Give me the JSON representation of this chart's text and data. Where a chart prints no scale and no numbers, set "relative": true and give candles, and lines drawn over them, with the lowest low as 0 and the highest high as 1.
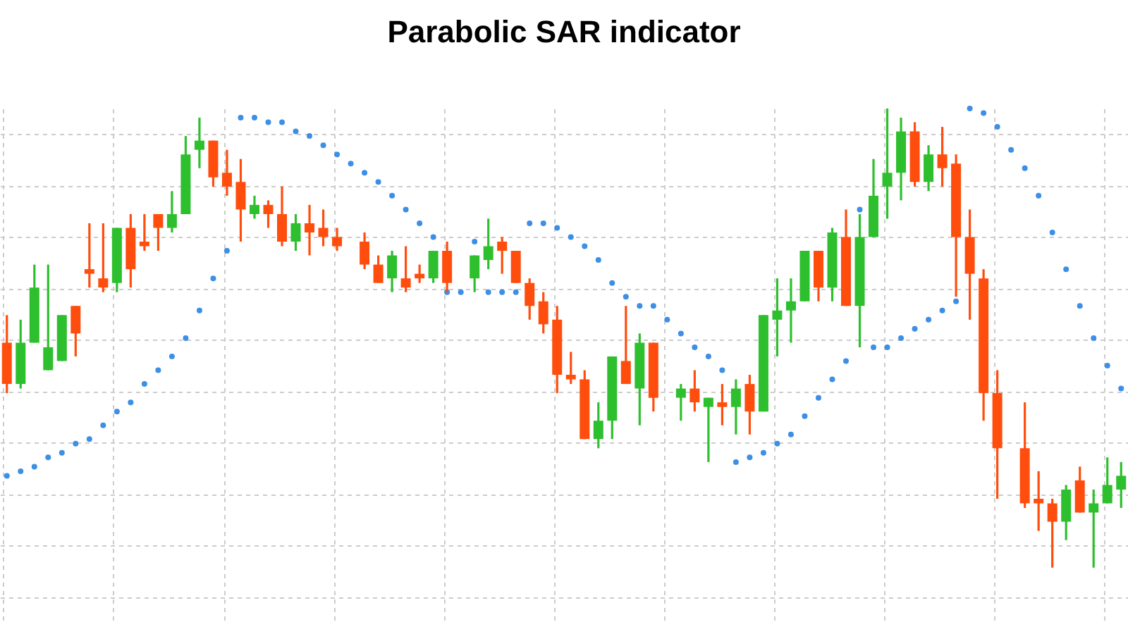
{
  "chart_data": {
    "type": "candlestick",
    "title": "Parabolic SAR indicator",
    "relative": true,
    "grid": true,
    "tick_labels": false,
    "marker": "circle",
    "categories": [
      null,
      null,
      null,
      null,
      null,
      null,
      null,
      null,
      null,
      null,
      null,
      null,
      null,
      null,
      null,
      null,
      null,
      null,
      null,
      null,
      null,
      null,
      null,
      null,
      null,
      null,
      null,
      null,
      null,
      null,
      null,
      null,
      null,
      null,
      null,
      null,
      null,
      null,
      null,
      null,
      null,
      null,
      null,
      null,
      null,
      null,
      null,
      null,
      null,
      null,
      null,
      null,
      null,
      null,
      null,
      null,
      null,
      null,
      null,
      null,
      null,
      null,
      null,
      null,
      null,
      null,
      null,
      null,
      null,
      null,
      null,
      null,
      null,
      null,
      null,
      null,
      null,
      null,
      null,
      null,
      null,
      null
    ],
    "ohlc": [
      [
        0.49,
        0.55,
        0.38,
        0.4
      ],
      [
        0.4,
        0.54,
        0.39,
        0.49
      ],
      [
        0.49,
        0.66,
        0.49,
        0.61
      ],
      [
        0.43,
        0.66,
        0.43,
        0.48
      ],
      [
        0.45,
        0.55,
        0.45,
        0.55
      ],
      [
        0.57,
        0.57,
        0.46,
        0.51
      ],
      [
        0.65,
        0.75,
        0.61,
        0.64
      ],
      [
        0.63,
        0.75,
        0.6,
        0.61
      ],
      [
        0.62,
        0.74,
        0.6,
        0.74
      ],
      [
        0.74,
        0.77,
        0.61,
        0.65
      ],
      [
        0.71,
        0.77,
        0.69,
        0.7
      ],
      [
        0.77,
        0.77,
        0.69,
        0.74
      ],
      [
        0.74,
        0.82,
        0.73,
        0.77
      ],
      [
        0.77,
        0.94,
        0.77,
        0.9
      ],
      [
        0.91,
        0.98,
        0.87,
        0.93
      ],
      [
        0.93,
        0.93,
        0.83,
        0.85
      ],
      [
        0.86,
        0.91,
        0.81,
        0.83
      ],
      [
        0.84,
        0.89,
        0.71,
        0.78
      ],
      [
        0.77,
        0.81,
        0.76,
        0.79
      ],
      [
        0.79,
        0.8,
        0.74,
        0.77
      ],
      [
        0.77,
        0.83,
        0.7,
        0.71
      ],
      [
        0.71,
        0.77,
        0.69,
        0.75
      ],
      [
        0.75,
        0.79,
        0.68,
        0.73
      ],
      [
        0.74,
        0.78,
        0.7,
        0.72
      ],
      [
        0.72,
        0.74,
        0.69,
        0.7
      ],
      null,
      [
        0.71,
        0.73,
        0.65,
        0.66
      ],
      [
        0.66,
        0.68,
        0.62,
        0.62
      ],
      [
        0.63,
        0.69,
        0.6,
        0.68
      ],
      [
        0.63,
        0.7,
        0.6,
        0.61
      ],
      [
        0.64,
        0.66,
        0.62,
        0.63
      ],
      [
        0.63,
        0.69,
        0.62,
        0.69
      ],
      [
        0.69,
        0.71,
        0.6,
        0.62
      ],
      null,
      [
        0.63,
        0.68,
        0.6,
        0.68
      ],
      [
        0.67,
        0.76,
        0.65,
        0.7
      ],
      [
        0.71,
        0.72,
        0.64,
        0.69
      ],
      [
        0.69,
        0.69,
        0.62,
        0.62
      ],
      [
        0.62,
        0.63,
        0.54,
        0.57
      ],
      [
        0.58,
        0.6,
        0.51,
        0.53
      ],
      [
        0.54,
        0.57,
        0.38,
        0.42
      ],
      [
        0.42,
        0.47,
        0.4,
        0.41
      ],
      [
        0.41,
        0.43,
        0.28,
        0.28
      ],
      [
        0.28,
        0.36,
        0.26,
        0.32
      ],
      [
        0.32,
        0.46,
        0.28,
        0.46
      ],
      [
        0.45,
        0.57,
        0.4,
        0.4
      ],
      [
        0.39,
        0.51,
        0.31,
        0.49
      ],
      [
        0.49,
        0.49,
        0.34,
        0.37
      ],
      null,
      [
        0.37,
        0.4,
        0.32,
        0.39
      ],
      [
        0.39,
        0.43,
        0.34,
        0.36
      ],
      [
        0.35,
        0.37,
        0.23,
        0.37
      ],
      [
        0.36,
        0.4,
        0.31,
        0.35
      ],
      [
        0.35,
        0.41,
        0.29,
        0.39
      ],
      [
        0.4,
        0.42,
        0.29,
        0.34
      ],
      [
        0.34,
        0.55,
        0.34,
        0.55
      ],
      [
        0.54,
        0.63,
        0.46,
        0.56
      ],
      [
        0.56,
        0.63,
        0.49,
        0.58
      ],
      [
        0.58,
        0.69,
        0.58,
        0.69
      ],
      [
        0.69,
        0.69,
        0.58,
        0.61
      ],
      [
        0.61,
        0.74,
        0.58,
        0.73
      ],
      [
        0.72,
        0.78,
        0.57,
        0.57
      ],
      [
        0.57,
        0.77,
        0.48,
        0.72
      ],
      [
        0.72,
        0.89,
        0.72,
        0.81
      ],
      [
        0.83,
        1,
        0.76,
        0.86
      ],
      [
        0.86,
        0.98,
        0.8,
        0.95
      ],
      [
        0.95,
        0.97,
        0.83,
        0.84
      ],
      [
        0.84,
        0.92,
        0.82,
        0.9
      ],
      [
        0.9,
        0.96,
        0.83,
        0.87
      ],
      [
        0.88,
        0.9,
        0.59,
        0.72
      ],
      [
        0.72,
        0.78,
        0.54,
        0.64
      ],
      [
        0.63,
        0.65,
        0.32,
        0.38
      ],
      [
        0.38,
        0.43,
        0.15,
        0.26
      ],
      null,
      [
        0.26,
        0.36,
        0.13,
        0.14
      ],
      [
        0.15,
        0.21,
        0.08,
        0.14
      ],
      [
        0.14,
        0.15,
        0,
        0.1
      ],
      [
        0.1,
        0.18,
        0.06,
        0.17
      ],
      [
        0.19,
        0.22,
        0.12,
        0.12
      ],
      [
        0.12,
        0.17,
        0,
        0.14
      ],
      [
        0.14,
        0.24,
        0.14,
        0.18
      ],
      [
        0.17,
        0.23,
        0.13,
        0.2
      ]
    ],
    "colors": [
      "#ff4d0d",
      "#2ebf2e",
      "#2ebf2e",
      "#2ebf2e",
      "#2ebf2e",
      "#ff4d0d",
      "#ff4d0d",
      "#ff4d0d",
      "#2ebf2e",
      "#ff4d0d",
      "#ff4d0d",
      "#ff4d0d",
      "#2ebf2e",
      "#2ebf2e",
      "#2ebf2e",
      "#ff4d0d",
      "#ff4d0d",
      "#ff4d0d",
      "#2ebf2e",
      "#ff4d0d",
      "#ff4d0d",
      "#2ebf2e",
      "#ff4d0d",
      "#ff4d0d",
      "#ff4d0d",
      null,
      "#ff4d0d",
      "#ff4d0d",
      "#2ebf2e",
      "#ff4d0d",
      "#ff4d0d",
      "#2ebf2e",
      "#ff4d0d",
      null,
      "#2ebf2e",
      "#2ebf2e",
      "#ff4d0d",
      "#ff4d0d",
      "#ff4d0d",
      "#ff4d0d",
      "#ff4d0d",
      "#ff4d0d",
      "#ff4d0d",
      "#2ebf2e",
      "#2ebf2e",
      "#ff4d0d",
      "#2ebf2e",
      "#ff4d0d",
      null,
      "#2ebf2e",
      "#ff4d0d",
      "#2ebf2e",
      "#ff4d0d",
      "#2ebf2e",
      "#ff4d0d",
      "#2ebf2e",
      "#2ebf2e",
      "#2ebf2e",
      "#2ebf2e",
      "#ff4d0d",
      "#2ebf2e",
      "#ff4d0d",
      "#2ebf2e",
      "#2ebf2e",
      "#2ebf2e",
      "#2ebf2e",
      "#ff4d0d",
      "#2ebf2e",
      "#ff4d0d",
      "#ff4d0d",
      "#ff4d0d",
      "#ff4d0d",
      "#ff4d0d",
      null,
      "#ff4d0d",
      "#ff4d0d",
      "#ff4d0d",
      "#2ebf2e",
      "#ff4d0d",
      "#2ebf2e",
      "#2ebf2e",
      "#2ebf2e"
    ],
    "series": [
      {
        "type": "scatter",
        "color": "#3d8fe6",
        "values": [
          0.2,
          0.21,
          0.22,
          0.24,
          0.25,
          0.27,
          0.28,
          0.31,
          0.34,
          0.36,
          0.4,
          0.43,
          0.46,
          0.5,
          0.56,
          0.63,
          0.69,
          0.98,
          0.98,
          0.97,
          0.97,
          0.95,
          0.94,
          0.92,
          0.9,
          0.88,
          0.86,
          0.84,
          0.81,
          0.78,
          0.75,
          0.72,
          0.6,
          0.6,
          0.71,
          0.6,
          0.6,
          0.6,
          0.75,
          0.75,
          0.74,
          0.72,
          0.7,
          0.67,
          0.62,
          0.59,
          0.57,
          0.57,
          0.54,
          0.51,
          0.48,
          0.46,
          0.43,
          0.23,
          0.24,
          0.25,
          0.27,
          0.29,
          0.33,
          0.37,
          0.41,
          0.45,
          0.78,
          0.48,
          0.48,
          0.5,
          0.52,
          0.54,
          0.56,
          0.58,
          1.0,
          0.99,
          0.96,
          0.91,
          0.87,
          0.81,
          0.73,
          0.65,
          0.57,
          0.5,
          0.44,
          0.39
        ]
      }
    ]
  }
}
